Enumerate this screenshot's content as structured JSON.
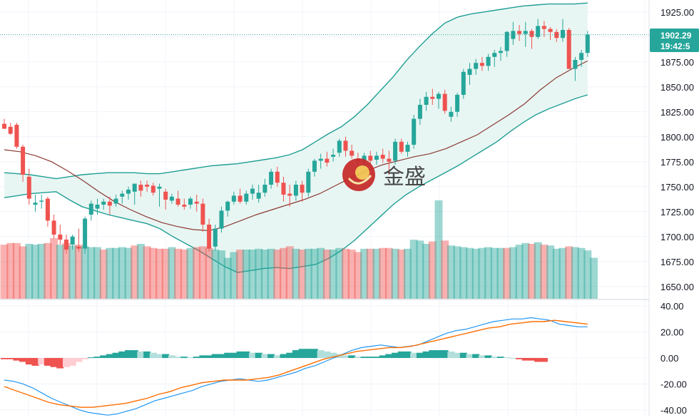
{
  "chart_data": [
    {
      "type": "candlestick",
      "panel": "price",
      "ylim": [
        1637,
        1937
      ],
      "y_ticks": [
        "1925.00",
        "1900.00",
        "1875.00",
        "1850.00",
        "1825.00",
        "1800.00",
        "1775.00",
        "1750.00",
        "1725.00",
        "1700.00",
        "1675.00",
        "1650.00"
      ],
      "last_price_label": "1902.29",
      "countdown_label": "19:42:5",
      "last_price": 1902.29,
      "colors": {
        "up": "#26a69a",
        "down": "#ef5350",
        "band": "#1e9e94",
        "band_fill": "#e4f4f1",
        "basis": "#8b3a33",
        "price_tag": "#26a69a"
      },
      "candles": [
        [
          1813,
          1818,
          1808,
          1808
        ],
        [
          1810,
          1814,
          1802,
          1803
        ],
        [
          1812,
          1814,
          1788,
          1790
        ],
        [
          1790,
          1792,
          1755,
          1762
        ],
        [
          1760,
          1768,
          1732,
          1738
        ],
        [
          1732,
          1742,
          1725,
          1734
        ],
        [
          1735,
          1742,
          1728,
          1736
        ],
        [
          1738,
          1740,
          1710,
          1716
        ],
        [
          1716,
          1722,
          1698,
          1702
        ],
        [
          1702,
          1712,
          1692,
          1697
        ],
        [
          1697,
          1702,
          1683,
          1687
        ],
        [
          1692,
          1702,
          1687,
          1700
        ],
        [
          1690,
          1708,
          1685,
          1688
        ],
        [
          1688,
          1720,
          1683,
          1718
        ],
        [
          1722,
          1736,
          1716,
          1733
        ],
        [
          1728,
          1738,
          1722,
          1732
        ],
        [
          1732,
          1738,
          1727,
          1735
        ],
        [
          1735,
          1740,
          1722,
          1731
        ],
        [
          1733,
          1742,
          1730,
          1738
        ],
        [
          1740,
          1746,
          1733,
          1743
        ],
        [
          1743,
          1750,
          1737,
          1747
        ],
        [
          1745,
          1752,
          1732,
          1753
        ],
        [
          1752,
          1756,
          1740,
          1746
        ],
        [
          1752,
          1756,
          1745,
          1750
        ],
        [
          1751,
          1754,
          1741,
          1744
        ],
        [
          1748,
          1753,
          1730,
          1750
        ],
        [
          1745,
          1748,
          1727,
          1737
        ],
        [
          1736,
          1743,
          1733,
          1740
        ],
        [
          1738,
          1746,
          1730,
          1732
        ],
        [
          1732,
          1738,
          1727,
          1730
        ],
        [
          1732,
          1740,
          1728,
          1738
        ],
        [
          1735,
          1742,
          1725,
          1733
        ],
        [
          1733,
          1738,
          1705,
          1712
        ],
        [
          1712,
          1718,
          1685,
          1688
        ],
        [
          1690,
          1712,
          1686,
          1708
        ],
        [
          1708,
          1730,
          1704,
          1726
        ],
        [
          1726,
          1736,
          1720,
          1735
        ],
        [
          1735,
          1745,
          1732,
          1741
        ],
        [
          1741,
          1748,
          1733,
          1735
        ],
        [
          1735,
          1746,
          1732,
          1743
        ],
        [
          1743,
          1752,
          1737,
          1748
        ],
        [
          1738,
          1752,
          1734,
          1744
        ],
        [
          1744,
          1758,
          1740,
          1752
        ],
        [
          1752,
          1768,
          1748,
          1765
        ],
        [
          1765,
          1770,
          1750,
          1754
        ],
        [
          1754,
          1760,
          1735,
          1742
        ],
        [
          1743,
          1752,
          1730,
          1741
        ],
        [
          1741,
          1756,
          1736,
          1752
        ],
        [
          1752,
          1756,
          1735,
          1744
        ],
        [
          1744,
          1768,
          1740,
          1765
        ],
        [
          1765,
          1778,
          1760,
          1776
        ],
        [
          1776,
          1783,
          1768,
          1778
        ],
        [
          1778,
          1785,
          1770,
          1774
        ],
        [
          1780,
          1788,
          1775,
          1782
        ],
        [
          1784,
          1798,
          1780,
          1796
        ],
        [
          1796,
          1800,
          1780,
          1786
        ],
        [
          1786,
          1792,
          1778,
          1781
        ],
        [
          1778,
          1784,
          1770,
          1776
        ],
        [
          1776,
          1784,
          1770,
          1781
        ],
        [
          1781,
          1786,
          1772,
          1776
        ],
        [
          1777,
          1785,
          1772,
          1781
        ],
        [
          1782,
          1788,
          1774,
          1778
        ],
        [
          1778,
          1786,
          1762,
          1775
        ],
        [
          1776,
          1798,
          1772,
          1795
        ],
        [
          1795,
          1798,
          1783,
          1785
        ],
        [
          1785,
          1795,
          1780,
          1792
        ],
        [
          1792,
          1822,
          1788,
          1818
        ],
        [
          1818,
          1838,
          1812,
          1832
        ],
        [
          1832,
          1845,
          1826,
          1840
        ],
        [
          1840,
          1848,
          1832,
          1838
        ],
        [
          1838,
          1845,
          1828,
          1843
        ],
        [
          1843,
          1847,
          1823,
          1826
        ],
        [
          1820,
          1830,
          1815,
          1825
        ],
        [
          1825,
          1844,
          1820,
          1842
        ],
        [
          1842,
          1868,
          1838,
          1865
        ],
        [
          1862,
          1874,
          1852,
          1868
        ],
        [
          1868,
          1878,
          1862,
          1874
        ],
        [
          1874,
          1880,
          1866,
          1871
        ],
        [
          1871,
          1883,
          1866,
          1880
        ],
        [
          1880,
          1887,
          1870,
          1884
        ],
        [
          1884,
          1890,
          1876,
          1886
        ],
        [
          1886,
          1906,
          1880,
          1905
        ],
        [
          1898,
          1915,
          1892,
          1906
        ],
        [
          1906,
          1912,
          1896,
          1903
        ],
        [
          1903,
          1915,
          1890,
          1906
        ],
        [
          1906,
          1908,
          1888,
          1900
        ],
        [
          1900,
          1918,
          1898,
          1911
        ],
        [
          1911,
          1916,
          1900,
          1908
        ],
        [
          1908,
          1910,
          1897,
          1905
        ],
        [
          1905,
          1908,
          1895,
          1899
        ],
        [
          1899,
          1918,
          1895,
          1907
        ],
        [
          1907,
          1909,
          1868,
          1868
        ],
        [
          1868,
          1880,
          1856,
          1877
        ],
        [
          1877,
          1887,
          1870,
          1884
        ],
        [
          1884,
          1906,
          1880,
          1902.29
        ]
      ],
      "bollinger": {
        "upper": [
          1764,
          1763,
          1762,
          1760,
          1758,
          1760,
          1762,
          1763,
          1764,
          1764,
          1764,
          1763,
          1763,
          1765,
          1767,
          1769,
          1771,
          1772,
          1773,
          1775,
          1777,
          1779,
          1782,
          1787,
          1795,
          1803,
          1810,
          1820,
          1832,
          1846,
          1860,
          1876,
          1890,
          1903,
          1914,
          1920,
          1923,
          1925,
          1927,
          1929,
          1931,
          1932,
          1933,
          1933,
          1933,
          1934
        ],
        "basis": [
          1787,
          1785,
          1781,
          1775,
          1766,
          1756,
          1745,
          1735,
          1727,
          1720,
          1714,
          1710,
          1707,
          1706,
          1710,
          1716,
          1722,
          1727,
          1732,
          1737,
          1743,
          1751,
          1759,
          1766,
          1772,
          1776,
          1780,
          1783,
          1788,
          1795,
          1802,
          1812,
          1822,
          1833,
          1847,
          1859,
          1868,
          1876
        ],
        "lower": [
          1739,
          1741,
          1743,
          1744,
          1745,
          1737,
          1730,
          1726,
          1722,
          1719,
          1716,
          1713,
          1708,
          1700,
          1693,
          1686,
          1678,
          1670,
          1664,
          1666,
          1668,
          1669,
          1668,
          1670,
          1672,
          1678,
          1686,
          1696,
          1708,
          1720,
          1732,
          1742,
          1750,
          1757,
          1764,
          1771,
          1779,
          1787,
          1795,
          1805,
          1814,
          1822,
          1828,
          1833,
          1838,
          1842
        ]
      },
      "volume": [
        66,
        68,
        68,
        64,
        67,
        66,
        67,
        68,
        74,
        66,
        68,
        65,
        66,
        64,
        63,
        63,
        60,
        62,
        62,
        63,
        62,
        65,
        67,
        64,
        62,
        61,
        61,
        63,
        61,
        60,
        62,
        63,
        64,
        62,
        60,
        59,
        50,
        57,
        60,
        60,
        60,
        61,
        60,
        61,
        60,
        62,
        64,
        61,
        60,
        61,
        61,
        62,
        60,
        60,
        62,
        61,
        60,
        57,
        61,
        61,
        61,
        62,
        62,
        61,
        60,
        61,
        72,
        71,
        67,
        70,
        120,
        71,
        65,
        64,
        63,
        62,
        61,
        62,
        63,
        62,
        62,
        62,
        63,
        66,
        68,
        67,
        69,
        66,
        65,
        61,
        62,
        64,
        63,
        62,
        59,
        50
      ],
      "volume_up": [
        false,
        false,
        false,
        false,
        true,
        true,
        true,
        false,
        false,
        true,
        false,
        true,
        false,
        true,
        true,
        true,
        false,
        true,
        true,
        true,
        true,
        false,
        true,
        false,
        false,
        false,
        false,
        true,
        false,
        false,
        true,
        false,
        false,
        false,
        true,
        true,
        true,
        true,
        false,
        true,
        true,
        true,
        true,
        true,
        false,
        false,
        false,
        true,
        false,
        true,
        true,
        true,
        false,
        true,
        true,
        false,
        false,
        false,
        true,
        false,
        true,
        false,
        false,
        true,
        false,
        true,
        true,
        true,
        true,
        false,
        true,
        false,
        true,
        true,
        true,
        true,
        true,
        true,
        true,
        true,
        true,
        false,
        true,
        true,
        true,
        false,
        true,
        false,
        true,
        true,
        true,
        false,
        true,
        true,
        true,
        true
      ]
    },
    {
      "type": "macd",
      "panel": "indicator",
      "ylim": [
        -45,
        45
      ],
      "y_ticks": [
        "40.00",
        "20.00",
        "0.00",
        "-20.00",
        "-40.00"
      ],
      "colors": {
        "macd_line": "#2196f3",
        "signal_line": "#ff6d00",
        "hist_up_strong": "#26a69a",
        "hist_up_weak": "#b2dfdb",
        "hist_down_strong": "#ef5350",
        "hist_down_weak": "#ffcdd2"
      },
      "histogram": [
        -1,
        -1,
        -2,
        -3,
        -5,
        -6,
        -5,
        -6,
        -7,
        -8,
        -7,
        -6,
        -3,
        -1,
        0.5,
        1,
        2,
        3,
        4,
        5,
        6,
        6,
        5,
        5,
        4,
        3,
        3,
        2,
        1,
        1,
        0.5,
        1,
        2,
        2,
        3,
        3,
        4,
        4,
        5,
        5,
        4,
        4,
        3,
        3,
        2,
        3,
        4,
        6,
        7,
        7,
        7,
        6,
        5,
        4,
        3,
        2,
        2,
        1,
        1,
        1,
        1,
        2,
        3,
        4,
        5,
        5,
        4,
        4,
        5,
        6,
        6,
        6,
        5,
        4,
        4,
        3,
        3,
        2,
        2,
        1,
        1,
        0.5,
        0,
        -1,
        -2,
        -2,
        -3,
        -3
      ],
      "macd_line": [
        -17,
        -18,
        -20,
        -23,
        -27,
        -31,
        -34,
        -37,
        -40,
        -42,
        -43,
        -44,
        -43,
        -41,
        -39,
        -36,
        -33,
        -31,
        -29,
        -27,
        -25,
        -22,
        -20,
        -18,
        -17,
        -16,
        -17,
        -18,
        -17,
        -15,
        -13,
        -11,
        -8,
        -6,
        -3,
        0,
        3,
        6,
        8,
        9,
        10,
        9,
        8,
        9,
        10,
        13,
        16,
        19,
        21,
        22,
        24,
        26,
        28,
        29,
        30,
        30,
        31,
        30,
        29,
        26,
        25,
        24,
        24
      ],
      "signal_line": [
        -22,
        -25,
        -28,
        -31,
        -34,
        -36,
        -37,
        -38,
        -38,
        -37,
        -36,
        -35,
        -33,
        -31,
        -28,
        -26,
        -23,
        -21,
        -19,
        -18,
        -17,
        -17,
        -17,
        -16,
        -15,
        -13,
        -10,
        -7,
        -4,
        -1,
        1,
        3,
        5,
        6,
        7,
        8,
        8,
        9,
        11,
        13,
        15,
        17,
        19,
        21,
        23,
        24,
        26,
        27,
        28,
        28,
        29,
        28,
        27,
        26
      ]
    }
  ],
  "watermark": {
    "brand_text": "金盛"
  }
}
